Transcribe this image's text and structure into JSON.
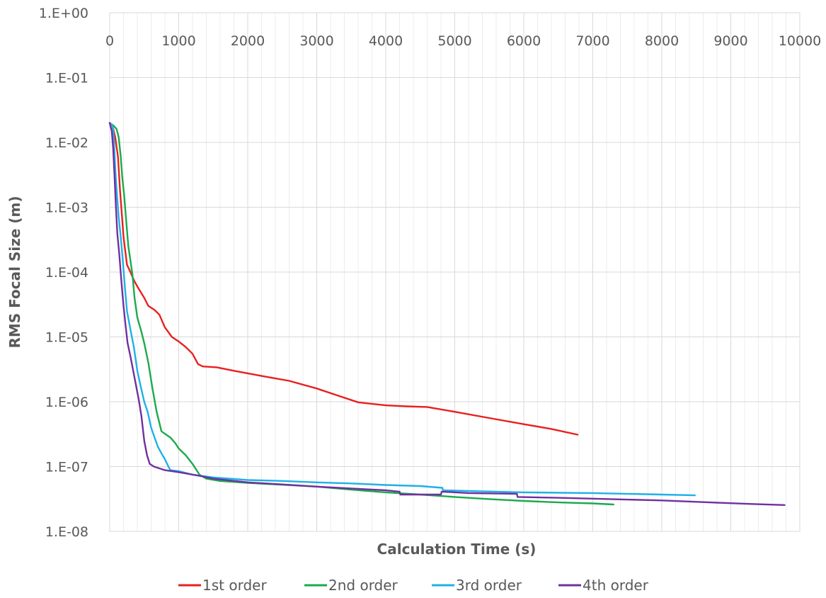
{
  "chart_data": {
    "type": "line",
    "xlabel": "Calculation Time (s)",
    "ylabel": "RMS Focal Size (m)",
    "xlim": [
      0,
      10000
    ],
    "ylim": [
      1e-08,
      1
    ],
    "yscale": "log",
    "x_position": "top",
    "grid": true,
    "legend_position": "bottom",
    "x_ticks": [
      "0",
      "1000",
      "2000",
      "3000",
      "4000",
      "5000",
      "6000",
      "7000",
      "8000",
      "9000",
      "10000"
    ],
    "y_ticks": [
      "1.E+00",
      "1.E-01",
      "1.E-02",
      "1.E-03",
      "1.E-04",
      "1.E-05",
      "1.E-06",
      "1.E-07",
      "1.E-08"
    ],
    "series": [
      {
        "name": "1st order",
        "color": "#e8201f",
        "points": [
          [
            0,
            0.02
          ],
          [
            40,
            0.018
          ],
          [
            80,
            0.012
          ],
          [
            120,
            0.006
          ],
          [
            150,
            0.0018
          ],
          [
            200,
            0.00035
          ],
          [
            250,
            0.00013
          ],
          [
            300,
            0.0001
          ],
          [
            350,
            7.5e-05
          ],
          [
            400,
            6e-05
          ],
          [
            500,
            4e-05
          ],
          [
            560,
            3e-05
          ],
          [
            650,
            2.6e-05
          ],
          [
            720,
            2.2e-05
          ],
          [
            800,
            1.4e-05
          ],
          [
            900,
            1e-05
          ],
          [
            1000,
            8.5e-06
          ],
          [
            1100,
            7e-06
          ],
          [
            1200,
            5.5e-06
          ],
          [
            1280,
            3.8e-06
          ],
          [
            1350,
            3.5e-06
          ],
          [
            1550,
            3.4e-06
          ],
          [
            1800,
            3e-06
          ],
          [
            2200,
            2.5e-06
          ],
          [
            2600,
            2.1e-06
          ],
          [
            3000,
            1.6e-06
          ],
          [
            3300,
            1.25e-06
          ],
          [
            3600,
            9.8e-07
          ],
          [
            4000,
            8.8e-07
          ],
          [
            4300,
            8.5e-07
          ],
          [
            4600,
            8.3e-07
          ],
          [
            5000,
            7e-07
          ],
          [
            5500,
            5.6e-07
          ],
          [
            6000,
            4.5e-07
          ],
          [
            6400,
            3.8e-07
          ],
          [
            6780,
            3.1e-07
          ]
        ]
      },
      {
        "name": "2nd order",
        "color": "#1aab4b",
        "points": [
          [
            0,
            0.02
          ],
          [
            60,
            0.018
          ],
          [
            100,
            0.016
          ],
          [
            130,
            0.012
          ],
          [
            160,
            0.006
          ],
          [
            180,
            0.003
          ],
          [
            210,
            0.0015
          ],
          [
            240,
            0.0006
          ],
          [
            270,
            0.00025
          ],
          [
            300,
            0.00015
          ],
          [
            330,
            9e-05
          ],
          [
            360,
            4e-05
          ],
          [
            400,
            2e-05
          ],
          [
            460,
            1.2e-05
          ],
          [
            500,
            8e-06
          ],
          [
            560,
            4e-06
          ],
          [
            620,
            1.6e-06
          ],
          [
            680,
            7e-07
          ],
          [
            750,
            3.5e-07
          ],
          [
            800,
            3.2e-07
          ],
          [
            880,
            2.8e-07
          ],
          [
            950,
            2.3e-07
          ],
          [
            1000,
            1.9e-07
          ],
          [
            1100,
            1.5e-07
          ],
          [
            1200,
            1.1e-07
          ],
          [
            1300,
            7.5e-08
          ],
          [
            1400,
            6.5e-08
          ],
          [
            1600,
            6e-08
          ],
          [
            2000,
            5.6e-08
          ],
          [
            3000,
            4.9e-08
          ],
          [
            3500,
            4.4e-08
          ],
          [
            4000,
            4e-08
          ],
          [
            4500,
            3.7e-08
          ],
          [
            5000,
            3.4e-08
          ],
          [
            5500,
            3.15e-08
          ],
          [
            6000,
            2.95e-08
          ],
          [
            6500,
            2.8e-08
          ],
          [
            7000,
            2.7e-08
          ],
          [
            7300,
            2.6e-08
          ]
        ]
      },
      {
        "name": "3rd order",
        "color": "#1fb0e8",
        "points": [
          [
            0,
            0.02
          ],
          [
            40,
            0.018
          ],
          [
            60,
            0.012
          ],
          [
            80,
            0.004
          ],
          [
            100,
            0.0018
          ],
          [
            130,
            0.0007
          ],
          [
            160,
            0.00035
          ],
          [
            190,
            0.00015
          ],
          [
            220,
            6e-05
          ],
          [
            250,
            2.5e-05
          ],
          [
            300,
            1.3e-05
          ],
          [
            350,
            7e-06
          ],
          [
            400,
            3e-06
          ],
          [
            450,
            1.7e-06
          ],
          [
            500,
            1e-06
          ],
          [
            550,
            7e-07
          ],
          [
            600,
            4e-07
          ],
          [
            650,
            2.8e-07
          ],
          [
            700,
            2e-07
          ],
          [
            750,
            1.6e-07
          ],
          [
            800,
            1.3e-07
          ],
          [
            850,
            1e-07
          ],
          [
            880,
            8.8e-08
          ],
          [
            1000,
            8.5e-08
          ],
          [
            1200,
            7.5e-08
          ],
          [
            1500,
            6.8e-08
          ],
          [
            2000,
            6.2e-08
          ],
          [
            2500,
            6e-08
          ],
          [
            3000,
            5.7e-08
          ],
          [
            3500,
            5.5e-08
          ],
          [
            4000,
            5.2e-08
          ],
          [
            4500,
            5e-08
          ],
          [
            4820,
            4.7e-08
          ],
          [
            4830,
            4.3e-08
          ],
          [
            5200,
            4.2e-08
          ],
          [
            6000,
            4e-08
          ],
          [
            7000,
            3.9e-08
          ],
          [
            8000,
            3.7e-08
          ],
          [
            8480,
            3.6e-08
          ]
        ]
      },
      {
        "name": "4th order",
        "color": "#7030a0",
        "points": [
          [
            0,
            0.02
          ],
          [
            30,
            0.015
          ],
          [
            50,
            0.008
          ],
          [
            70,
            0.003
          ],
          [
            90,
            0.001
          ],
          [
            110,
            0.0004
          ],
          [
            140,
            0.00018
          ],
          [
            170,
            7e-05
          ],
          [
            200,
            3e-05
          ],
          [
            230,
            1.5e-05
          ],
          [
            260,
            8e-06
          ],
          [
            300,
            5e-06
          ],
          [
            340,
            3e-06
          ],
          [
            380,
            1.8e-06
          ],
          [
            420,
            1.1e-06
          ],
          [
            460,
            6e-07
          ],
          [
            500,
            2.5e-07
          ],
          [
            540,
            1.5e-07
          ],
          [
            580,
            1.1e-07
          ],
          [
            640,
            1e-07
          ],
          [
            800,
            8.8e-08
          ],
          [
            1000,
            8.2e-08
          ],
          [
            1300,
            7.2e-08
          ],
          [
            1500,
            6.5e-08
          ],
          [
            2000,
            5.7e-08
          ],
          [
            2500,
            5.3e-08
          ],
          [
            3000,
            4.9e-08
          ],
          [
            3500,
            4.6e-08
          ],
          [
            4000,
            4.3e-08
          ],
          [
            4200,
            4.1e-08
          ],
          [
            4210,
            3.7e-08
          ],
          [
            4800,
            3.7e-08
          ],
          [
            4810,
            4.1e-08
          ],
          [
            5200,
            3.9e-08
          ],
          [
            5900,
            3.8e-08
          ],
          [
            5910,
            3.4e-08
          ],
          [
            6500,
            3.3e-08
          ],
          [
            7000,
            3.2e-08
          ],
          [
            8000,
            3e-08
          ],
          [
            8700,
            2.8e-08
          ],
          [
            9300,
            2.65e-08
          ],
          [
            9780,
            2.55e-08
          ]
        ]
      }
    ]
  }
}
